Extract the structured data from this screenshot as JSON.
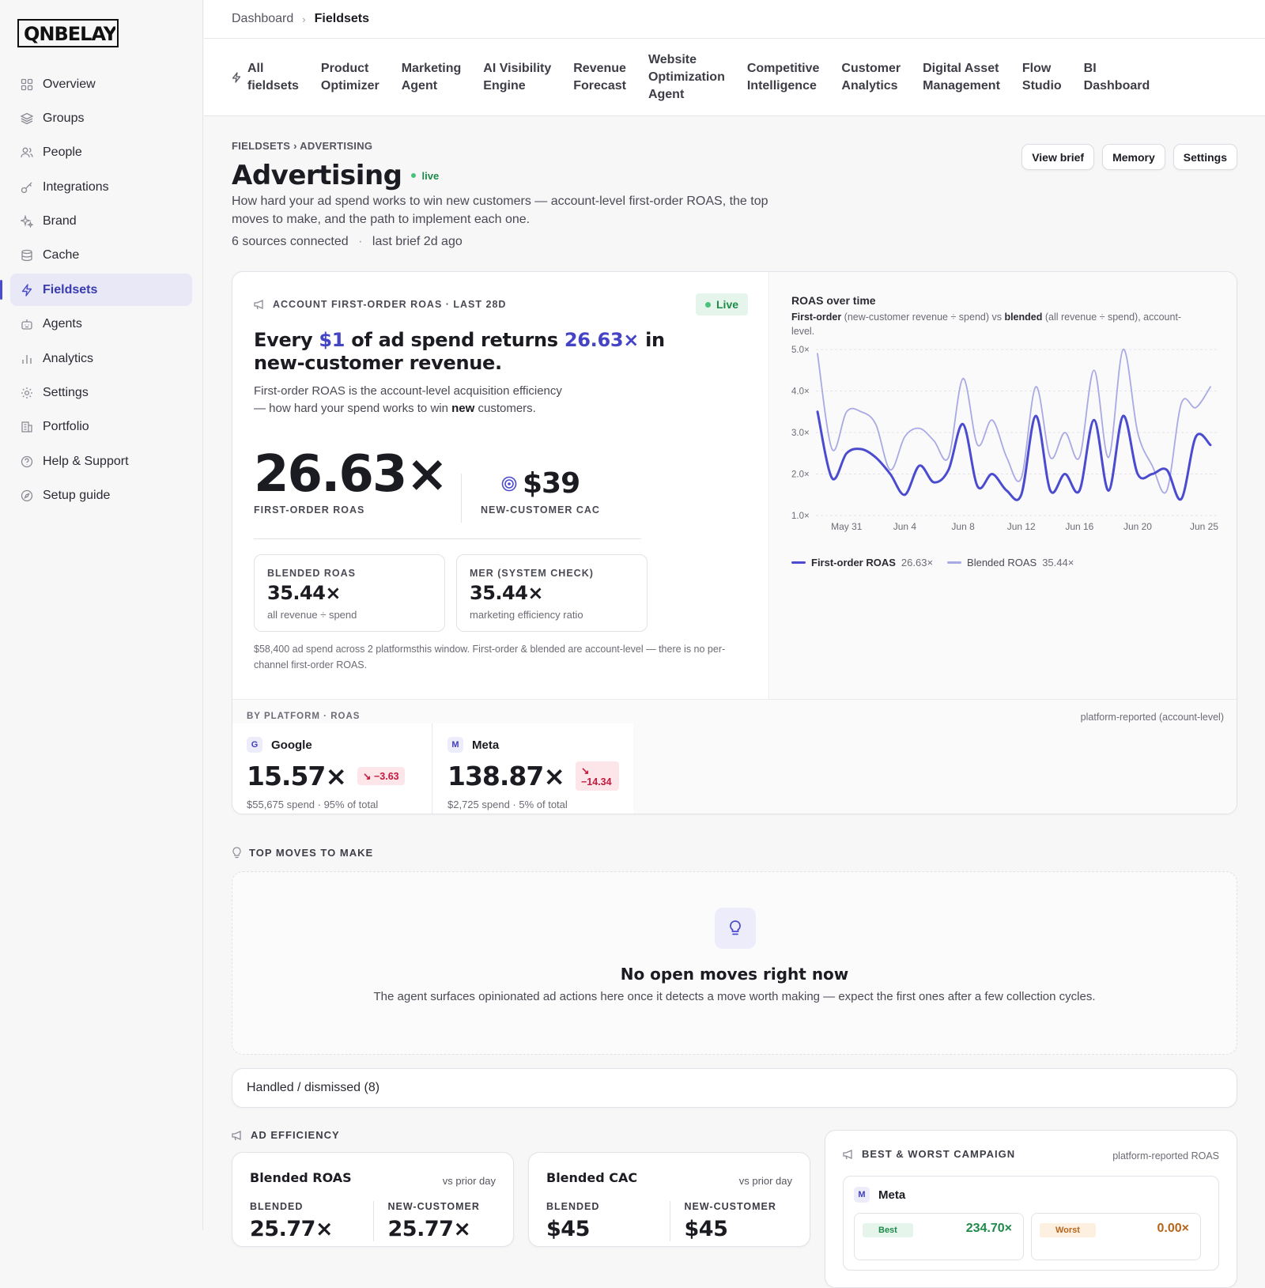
{
  "brand": {
    "logo_text": "ONBELAY"
  },
  "sidebar": {
    "items": [
      {
        "label": "Overview",
        "icon": "grid-icon"
      },
      {
        "label": "Groups",
        "icon": "layers-icon"
      },
      {
        "label": "People",
        "icon": "people-icon"
      },
      {
        "label": "Integrations",
        "icon": "key-icon"
      },
      {
        "label": "Brand",
        "icon": "sparkle-icon"
      },
      {
        "label": "Cache",
        "icon": "database-icon"
      },
      {
        "label": "Fieldsets",
        "icon": "bolt-icon",
        "active": true
      },
      {
        "label": "Agents",
        "icon": "robot-icon"
      },
      {
        "label": "Analytics",
        "icon": "bar-chart-icon"
      },
      {
        "label": "Settings",
        "icon": "gear-icon"
      },
      {
        "label": "Portfolio",
        "icon": "building-icon"
      },
      {
        "label": "Help & Support",
        "icon": "help-icon"
      },
      {
        "label": "Setup guide",
        "icon": "compass-icon"
      }
    ]
  },
  "topbar": {
    "crumb_root": "Dashboard",
    "crumb_current": "Fieldsets"
  },
  "tabs": [
    {
      "l1": "All",
      "l2": "fieldsets"
    },
    {
      "l1": "Product",
      "l2": "Optimizer"
    },
    {
      "l1": "Marketing",
      "l2": "Agent"
    },
    {
      "l1": "AI Visibility",
      "l2": "Engine"
    },
    {
      "l1": "Revenue",
      "l2": "Forecast"
    },
    {
      "l1": "Website",
      "l2": "Optimization",
      "l3": "Agent"
    },
    {
      "l1": "Competitive",
      "l2": "Intelligence"
    },
    {
      "l1": "Customer",
      "l2": "Analytics"
    },
    {
      "l1": "Digital Asset",
      "l2": "Management"
    },
    {
      "l1": "Flow",
      "l2": "Studio"
    },
    {
      "l1": "BI",
      "l2": "Dashboard"
    }
  ],
  "header": {
    "crumb": "FIELDSETS › ADVERTISING",
    "title": "Advertising",
    "status": "live",
    "description": "How hard your ad spend works to win new customers — account-level first-order ROAS, the top moves to make, and the path to implement each one.",
    "sources": "6 sources connected",
    "dot": "·",
    "last_brief": "last brief 2d ago",
    "buttons": [
      "View brief",
      "Memory",
      "Settings"
    ]
  },
  "hero": {
    "eyebrow": "ACCOUNT FIRST-ORDER ROAS · LAST 28D",
    "live": "Live",
    "line_a": "Every ",
    "line_b": "$1",
    "line_c": " of ad spend returns ",
    "line_d": "26.63×",
    "line_e": " in new-customer revenue.",
    "sub_a": "First-order ROAS is the account-level acquisition efficiency — how hard your spend works to win ",
    "sub_b": "new",
    "sub_c": " customers.",
    "roas_value": "26.63×",
    "roas_label": "FIRST-ORDER ROAS",
    "cac_value": "$39",
    "cac_label": "NEW-CUSTOMER CAC",
    "blended_label": "BLENDED ROAS",
    "blended_value": "35.44×",
    "blended_sub": "all revenue ÷ spend",
    "mer_label": "MER (SYSTEM CHECK)",
    "mer_value": "35.44×",
    "mer_sub": "marketing efficiency ratio",
    "footnote": "$58,400 ad spend across 2 platformsthis window. First-order & blended are account-level — there is no per-channel first-order ROAS."
  },
  "chart_panel": {
    "title": "ROAS over time",
    "sub_a": "First-order",
    "sub_b": " (new-customer revenue ÷ spend) vs ",
    "sub_c": "blended",
    "sub_d": " (all revenue ÷ spend), account-level.",
    "legend": [
      {
        "name": "First-order ROAS",
        "value": "26.63×",
        "color": "#4b4bd0"
      },
      {
        "name": "Blended ROAS",
        "value": "35.44×",
        "color": "#a9a9e3"
      }
    ]
  },
  "chart_data": {
    "type": "line",
    "title": "ROAS over time",
    "x_ticks": [
      "May 31",
      "Jun 4",
      "Jun 8",
      "Jun 12",
      "Jun 16",
      "Jun 20",
      "Jun 25"
    ],
    "y_ticks": [
      "5.0×",
      "4.0×",
      "3.0×",
      "2.0×",
      "1.0×"
    ],
    "ylim": [
      1.0,
      5.0
    ],
    "grid": true,
    "legend_position": "bottom-left",
    "x": [
      "May 29",
      "May 30",
      "May 31",
      "Jun 1",
      "Jun 2",
      "Jun 3",
      "Jun 4",
      "Jun 5",
      "Jun 6",
      "Jun 7",
      "Jun 8",
      "Jun 9",
      "Jun 10",
      "Jun 11",
      "Jun 12",
      "Jun 13",
      "Jun 14",
      "Jun 15",
      "Jun 16",
      "Jun 17",
      "Jun 18",
      "Jun 19",
      "Jun 20",
      "Jun 21",
      "Jun 22",
      "Jun 23",
      "Jun 24",
      "Jun 25"
    ],
    "series": [
      {
        "name": "First-order ROAS",
        "values": [
          3.5,
          1.9,
          2.5,
          2.6,
          2.4,
          2.0,
          1.5,
          2.2,
          1.8,
          2.1,
          3.2,
          1.7,
          2.0,
          1.6,
          1.5,
          3.4,
          1.6,
          2.0,
          1.6,
          3.3,
          1.6,
          3.4,
          2.0,
          2.0,
          2.1,
          1.4,
          2.9,
          2.7
        ]
      },
      {
        "name": "Blended ROAS",
        "values": [
          4.9,
          2.6,
          3.5,
          3.5,
          3.2,
          2.1,
          2.9,
          3.1,
          2.8,
          2.4,
          4.3,
          2.7,
          3.3,
          2.4,
          1.9,
          4.1,
          2.4,
          3.0,
          2.4,
          4.5,
          2.4,
          5.0,
          3.0,
          2.2,
          1.6,
          3.7,
          3.6,
          4.1
        ]
      }
    ]
  },
  "platforms": {
    "eyebrow": "BY PLATFORM · ROAS",
    "note": "platform-reported (account-level)",
    "items": [
      {
        "badge": "G",
        "name": "Google",
        "value": "15.57×",
        "delta": "↘ −3.63",
        "spend": "$55,675 spend · 95% of total"
      },
      {
        "badge": "M",
        "name": "Meta",
        "value": "138.87×",
        "delta": "↘ −14.34",
        "spend": "$2,725 spend · 5% of total"
      }
    ]
  },
  "moves": {
    "heading": "TOP MOVES TO MAKE",
    "empty_title": "No open moves right now",
    "empty_desc": "The agent surfaces opinionated ad actions here once it detects a move worth making — expect the first ones after a few collection cycles."
  },
  "handled": {
    "label": "Handled / dismissed (8)"
  },
  "efficiency": {
    "heading": "AD EFFICIENCY",
    "cards": [
      {
        "title": "Blended ROAS",
        "vs": "vs prior day",
        "c1": "BLENDED",
        "c1v": "25.77×",
        "c2": "NEW-CUSTOMER",
        "c2v": "25.77×"
      },
      {
        "title": "Blended CAC",
        "vs": "vs prior day",
        "c1": "BLENDED",
        "c1v": "$45",
        "c2": "NEW-CUSTOMER",
        "c2v": "$45"
      }
    ]
  },
  "bestworst": {
    "heading": "BEST & WORST CAMPAIGN",
    "note": "platform-reported ROAS",
    "badge": "M",
    "platform": "Meta",
    "best_tag": "Best",
    "best_value": "234.70×",
    "worst_tag": "Worst",
    "worst_value": "0.00×"
  }
}
